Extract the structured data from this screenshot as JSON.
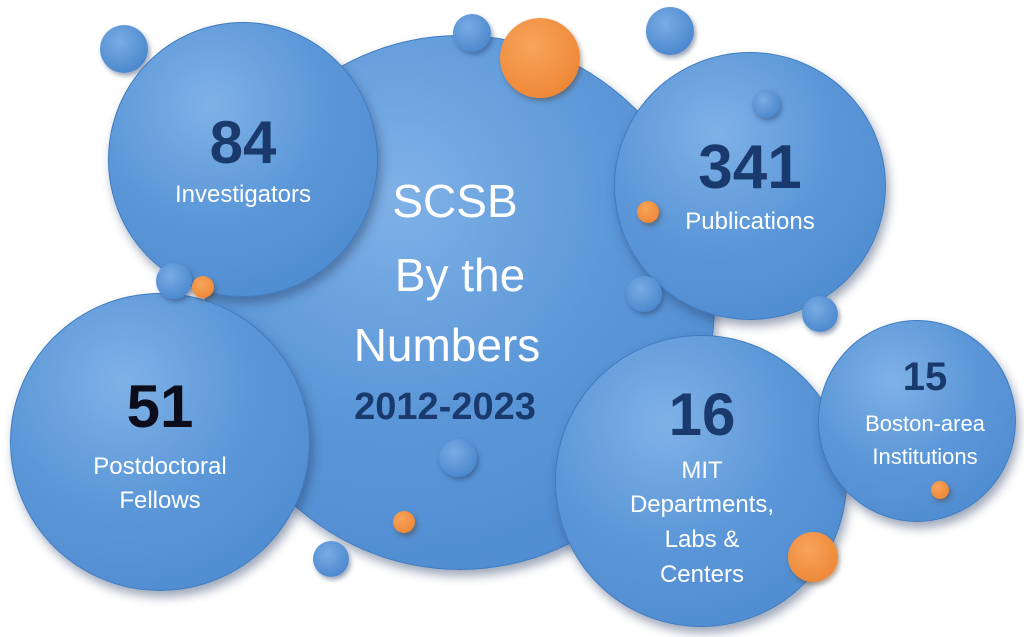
{
  "center": {
    "line1": "SCSB",
    "line2": "By the",
    "line3": "Numbers",
    "years": "2012-2023"
  },
  "stats": {
    "investigators": {
      "number": "84",
      "label": "Investigators"
    },
    "publications": {
      "number": "341",
      "label": "Publications"
    },
    "postdocs": {
      "number": "51",
      "label_line1": "Postdoctoral",
      "label_line2": "Fellows"
    },
    "mit": {
      "number": "16",
      "label_line1": "MIT",
      "label_line2": "Departments,",
      "label_line3": "Labs &",
      "label_line4": "Centers"
    },
    "institutions": {
      "number": "15",
      "label_line1": "Boston-area",
      "label_line2": "Institutions"
    }
  },
  "colors": {
    "bubble": "#5b97d8",
    "accent": "#ef8a3a",
    "number_dark": "#1a3a6e",
    "number_black": "#0c0c1a",
    "label": "#ffffff"
  }
}
